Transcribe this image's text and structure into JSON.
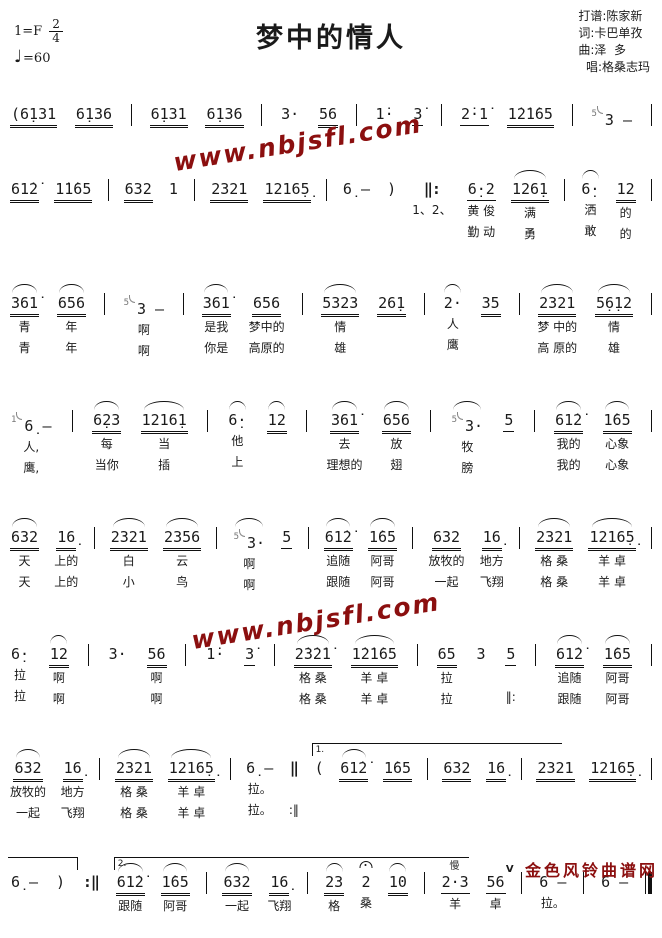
{
  "page": {
    "background": "#ffffff",
    "ink": "#1a1a1a",
    "accent_red": "#8B0F0F"
  },
  "header": {
    "title": "梦中的情人",
    "key": "1=F",
    "time_top": "2",
    "time_bottom": "4",
    "tempo_note": "♩",
    "tempo": "=60",
    "credits": [
      "打谱:陈家新",
      "词:卡巴单孜",
      "曲:泽  多",
      "  唱:格桑志玛"
    ]
  },
  "watermarks": {
    "site_diagonal": "www.nbjsfl.com",
    "site_footer": "金色风铃曲谱网"
  },
  "systems": [
    {
      "tokens": [
        {
          "t": "(6̣131",
          "u": 2
        },
        {
          "t": "6̣136",
          "u": 2
        },
        {
          "b": "|"
        },
        {
          "t": "6̣131",
          "u": 2
        },
        {
          "t": "6̣136",
          "u": 2
        },
        {
          "b": "|"
        },
        {
          "t": "3·"
        },
        {
          "t": "56",
          "u": 2
        },
        {
          "b": "|"
        },
        {
          "t": "1̇·"
        },
        {
          "t": "3̇",
          "u": 1
        },
        {
          "b": "|"
        },
        {
          "t": "2̇·1̇",
          "u": 1
        },
        {
          "t": "1̇2̇1̇65",
          "u": 2
        },
        {
          "b": "|"
        },
        {
          "g": "5",
          "t": "3 –"
        },
        {
          "b": "|"
        }
      ]
    },
    {
      "tokens": [
        {
          "t": "61̇2̇",
          "u": 2
        },
        {
          "t": "1̇1̇65",
          "u": 2
        },
        {
          "b": "|"
        },
        {
          "t": "632",
          "u": 2
        },
        {
          "t": "1"
        },
        {
          "b": "|"
        },
        {
          "t": "2321",
          "u": 2
        },
        {
          "t": "1216̣5̣",
          "u": 2
        },
        {
          "b": "|"
        },
        {
          "t": "6̣ –"
        },
        {
          "t": ")"
        },
        {
          "b": "‖:",
          "l1": "1、2、"
        },
        {
          "t": "6̣·2",
          "u": 1,
          "l1": "黄 俊",
          "l2": "勤 动"
        },
        {
          "t": "126̣1",
          "u": 2,
          "s": 1,
          "l1": "满",
          "l2": "勇"
        },
        {
          "b": "|"
        },
        {
          "t": "6̣·",
          "s": 1,
          "l1": "洒",
          "l2": "敢"
        },
        {
          "t": "12",
          "u": 2,
          "l1": "的",
          "l2": "的"
        },
        {
          "b": "|"
        }
      ]
    },
    {
      "tokens": [
        {
          "t": "361̇",
          "u": 2,
          "s": 1,
          "l1": "青",
          "l2": "青"
        },
        {
          "t": "656",
          "u": 2,
          "s": 1,
          "l1": "年",
          "l2": "年"
        },
        {
          "b": "|"
        },
        {
          "g": "5",
          "t": "3 –",
          "l1": "啊",
          "l2": "啊"
        },
        {
          "b": "|"
        },
        {
          "t": "361̇",
          "u": 2,
          "s": 1,
          "l1": "是我",
          "l2": "你是"
        },
        {
          "t": "656",
          "u": 2,
          "l1": "梦中的",
          "l2": "高原的"
        },
        {
          "b": "|"
        },
        {
          "t": "5323",
          "u": 2,
          "s": 1,
          "l1": "情",
          "l2": "雄"
        },
        {
          "t": "26̣1",
          "u": 2
        },
        {
          "b": "|"
        },
        {
          "t": "2·",
          "s": 1,
          "l1": "人",
          "l2": "鹰"
        },
        {
          "t": "35",
          "u": 2
        },
        {
          "b": "|"
        },
        {
          "t": "2321",
          "u": 2,
          "s": 1,
          "l1": "梦 中的",
          "l2": "高 原的"
        },
        {
          "t": "5̣6̣12",
          "u": 2,
          "s": 1,
          "l1": "情",
          "l2": "雄"
        },
        {
          "b": "|"
        }
      ]
    },
    {
      "tokens": [
        {
          "g": "1",
          "t": "6̣ –",
          "l1": "人,",
          "l2": "鹰,"
        },
        {
          "b": "|"
        },
        {
          "t": "6̣23",
          "u": 2,
          "s": 1,
          "l1": "每",
          "l2": "当你"
        },
        {
          "t": "1216̣1",
          "u": 2,
          "s": 1,
          "l1": "当",
          "l2": "插"
        },
        {
          "b": "|"
        },
        {
          "t": "6̣·",
          "s": 1,
          "l1": "他",
          "l2": "上"
        },
        {
          "t": "12",
          "u": 2,
          "s": 1
        },
        {
          "b": "|"
        },
        {
          "t": "361̇",
          "u": 2,
          "s": 1,
          "l1": "去",
          "l2": "理想的"
        },
        {
          "t": "656",
          "u": 2,
          "s": 1,
          "l1": "放",
          "l2": "翅"
        },
        {
          "b": "|"
        },
        {
          "g": "5",
          "t": "3·",
          "s": 1,
          "l1": "牧",
          "l2": "膀"
        },
        {
          "t": "5",
          "u": 1
        },
        {
          "b": "|"
        },
        {
          "t": "61̇2̇",
          "u": 2,
          "s": 1,
          "l1": "我的",
          "l2": "我的"
        },
        {
          "t": "1̇65",
          "u": 2,
          "s": 1,
          "l1": "心象",
          "l2": "心象"
        },
        {
          "b": "|"
        }
      ]
    },
    {
      "tokens": [
        {
          "t": "632",
          "u": 2,
          "s": 1,
          "l1": "天",
          "l2": "天"
        },
        {
          "t": "16̣",
          "u": 2,
          "l1": "上的",
          "l2": "上的"
        },
        {
          "b": "|"
        },
        {
          "t": "2321",
          "u": 2,
          "s": 1,
          "l1": "白",
          "l2": "小"
        },
        {
          "t": "2356",
          "u": 2,
          "s": 1,
          "l1": "云",
          "l2": "鸟"
        },
        {
          "b": "|"
        },
        {
          "g": "5",
          "t": "3·",
          "s": 1,
          "l1": "啊",
          "l2": "啊"
        },
        {
          "t": "5",
          "u": 1
        },
        {
          "b": "|"
        },
        {
          "t": "61̇2̇",
          "u": 2,
          "s": 1,
          "l1": "追随",
          "l2": "跟随"
        },
        {
          "t": "1̇65",
          "u": 2,
          "s": 1,
          "l1": "阿哥",
          "l2": "阿哥"
        },
        {
          "b": "|"
        },
        {
          "t": "632",
          "u": 2,
          "l1": "放牧的",
          "l2": "一起"
        },
        {
          "t": "16̣",
          "u": 2,
          "l1": "地方",
          "l2": "飞翔"
        },
        {
          "b": "|"
        },
        {
          "t": "2321",
          "u": 2,
          "s": 1,
          "l1": "格 桑",
          "l2": "格 桑"
        },
        {
          "t": "1216̣5̣",
          "u": 2,
          "s": 1,
          "l1": "羊 卓",
          "l2": "羊 卓"
        },
        {
          "b": "|"
        }
      ]
    },
    {
      "tokens": [
        {
          "t": "6̣·",
          "l1": "拉",
          "l2": "拉"
        },
        {
          "t": "12",
          "u": 2,
          "s": 1,
          "l1": "啊",
          "l2": "啊"
        },
        {
          "b": "|"
        },
        {
          "t": "3·"
        },
        {
          "t": "56",
          "u": 2,
          "l1": "啊",
          "l2": "啊"
        },
        {
          "b": "|"
        },
        {
          "t": "1̇·"
        },
        {
          "t": "3̇",
          "u": 1
        },
        {
          "b": "|"
        },
        {
          "t": "2̇3̇2̇1̇",
          "u": 2,
          "s": 1,
          "l1": "格 桑",
          "l2": "格 桑"
        },
        {
          "t": "1̇2̇1̇65",
          "u": 2,
          "s": 1,
          "l1": "羊 卓",
          "l2": "羊 卓"
        },
        {
          "b": "|"
        },
        {
          "t": "65",
          "u": 2,
          "l1": "拉",
          "l2": "拉"
        },
        {
          "t": "3"
        },
        {
          "t": "5",
          "u": 1,
          "l2": "‖:"
        },
        {
          "b": "|"
        },
        {
          "t": "61̇2̇",
          "u": 2,
          "s": 1,
          "l1": "追随",
          "l2": "跟随"
        },
        {
          "t": "1̇65",
          "u": 2,
          "s": 1,
          "l1": "阿哥",
          "l2": "阿哥"
        },
        {
          "b": "|"
        }
      ]
    },
    {
      "tokens": [
        {
          "t": "632",
          "u": 2,
          "s": 1,
          "l1": "放牧的",
          "l2": "一起"
        },
        {
          "t": "16̣",
          "u": 2,
          "l1": "地方",
          "l2": "飞翔"
        },
        {
          "b": "|"
        },
        {
          "t": "2321",
          "u": 2,
          "s": 1,
          "l1": "格 桑",
          "l2": "格 桑"
        },
        {
          "t": "1216̣5̣",
          "u": 2,
          "s": 1,
          "l1": "羊 卓",
          "l2": "羊 卓"
        },
        {
          "b": "|"
        },
        {
          "t": "6̣ –",
          "l1": "拉。",
          "l2": "拉。"
        },
        {
          "b": "‖",
          "l2": ":‖"
        },
        {
          "t": "(",
          "volta": "1.",
          "vw": 250
        },
        {
          "t": "61̇2̇",
          "u": 2,
          "s": 1
        },
        {
          "t": "1̇65",
          "u": 2
        },
        {
          "b": "|"
        },
        {
          "t": "632",
          "u": 2
        },
        {
          "t": "16̣",
          "u": 2
        },
        {
          "b": "|"
        },
        {
          "t": "2321",
          "u": 2
        },
        {
          "t": "1216̣5̣",
          "u": 2
        },
        {
          "b": "|"
        }
      ]
    },
    {
      "tokens": [
        {
          "t": "6̣ –",
          "volta": "",
          "vw": 70
        },
        {
          "t": ")"
        },
        {
          "b": ":‖"
        },
        {
          "t": "61̇2̇",
          "u": 2,
          "s": 1,
          "volta": "2.",
          "vw": 355,
          "l1": "跟随"
        },
        {
          "t": "1̇65",
          "u": 2,
          "s": 1,
          "l1": "阿哥"
        },
        {
          "b": "|"
        },
        {
          "t": "632",
          "u": 2,
          "s": 1,
          "l1": "一起"
        },
        {
          "t": "16̣",
          "u": 2,
          "l1": "飞翔"
        },
        {
          "b": "|"
        },
        {
          "t": "23",
          "u": 2,
          "s": 1,
          "l1": "格"
        },
        {
          "t": "2",
          "f": 1,
          "l1": "桑"
        },
        {
          "t": "10",
          "u": 2,
          "s": 1
        },
        {
          "b": "|"
        },
        {
          "t": "2·3",
          "u": 1,
          "m": "慢",
          "l1": "羊"
        },
        {
          "t": "56",
          "u": 1,
          "v": 1,
          "l1": "卓"
        },
        {
          "b": "|"
        },
        {
          "t": "6 –",
          "l1": "拉。"
        },
        {
          "b": "|"
        },
        {
          "t": "6 –"
        },
        {
          "b": "end"
        }
      ]
    }
  ]
}
